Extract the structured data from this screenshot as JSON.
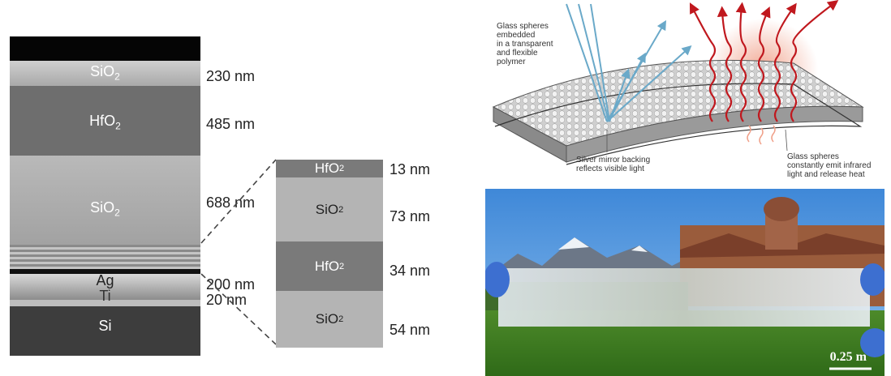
{
  "sem": {
    "layers": [
      {
        "name": "SiO",
        "sub": "2",
        "thickness": "230 nm"
      },
      {
        "name": "HfO",
        "sub": "2",
        "thickness": "485 nm"
      },
      {
        "name": "SiO",
        "sub": "2",
        "thickness": "688 nm"
      },
      {
        "name": "Ag",
        "sub": "",
        "thickness": "200 nm"
      },
      {
        "name": "Ti",
        "sub": "",
        "thickness": "20 nm"
      },
      {
        "name": "Si",
        "sub": "",
        "thickness": ""
      }
    ]
  },
  "stack": {
    "layers": [
      {
        "name": "HfO",
        "sub": "2",
        "thickness": "13 nm"
      },
      {
        "name": "SiO",
        "sub": "2",
        "thickness": "73 nm"
      },
      {
        "name": "HfO",
        "sub": "2",
        "thickness": "34 nm"
      },
      {
        "name": "SiO",
        "sub": "2",
        "thickness": "54 nm"
      }
    ]
  },
  "schematic": {
    "caption_polymer": "Glass spheres embedded in a transparent and flexible polymer",
    "caption_polymer_lines": [
      "Glass spheres",
      "embedded",
      "in a transparent",
      "and flexible",
      "polymer"
    ],
    "caption_mirror_lines": [
      "Silver mirror backing",
      "reflects visible light"
    ],
    "caption_emit_lines": [
      "Glass spheres",
      "constantly emit infrared",
      "light and release heat"
    ],
    "colors": {
      "visible_light": "#6aa9c9",
      "infrared": "#c0181e",
      "heat_glow": "#f0a089"
    }
  },
  "photo": {
    "scale_label": "0.25 m"
  }
}
